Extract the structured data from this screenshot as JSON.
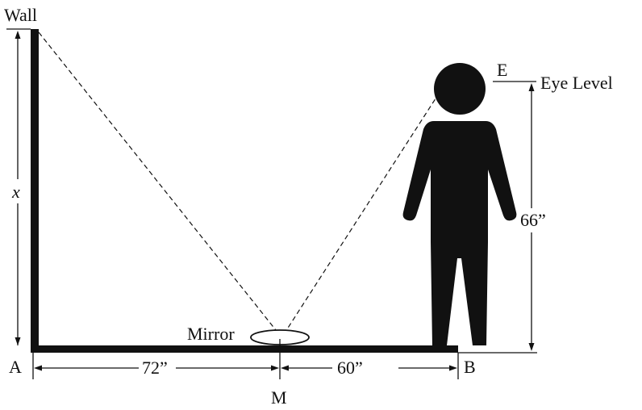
{
  "labels": {
    "wall": "Wall",
    "x": "x",
    "a": "A",
    "b": "B",
    "m": "M",
    "e": "E",
    "eye_level": "Eye Level",
    "mirror": "Mirror",
    "dist_am": "72”",
    "dist_mb": "60”",
    "height": "66”"
  },
  "colors": {
    "ink": "#111111",
    "background": "#ffffff"
  }
}
